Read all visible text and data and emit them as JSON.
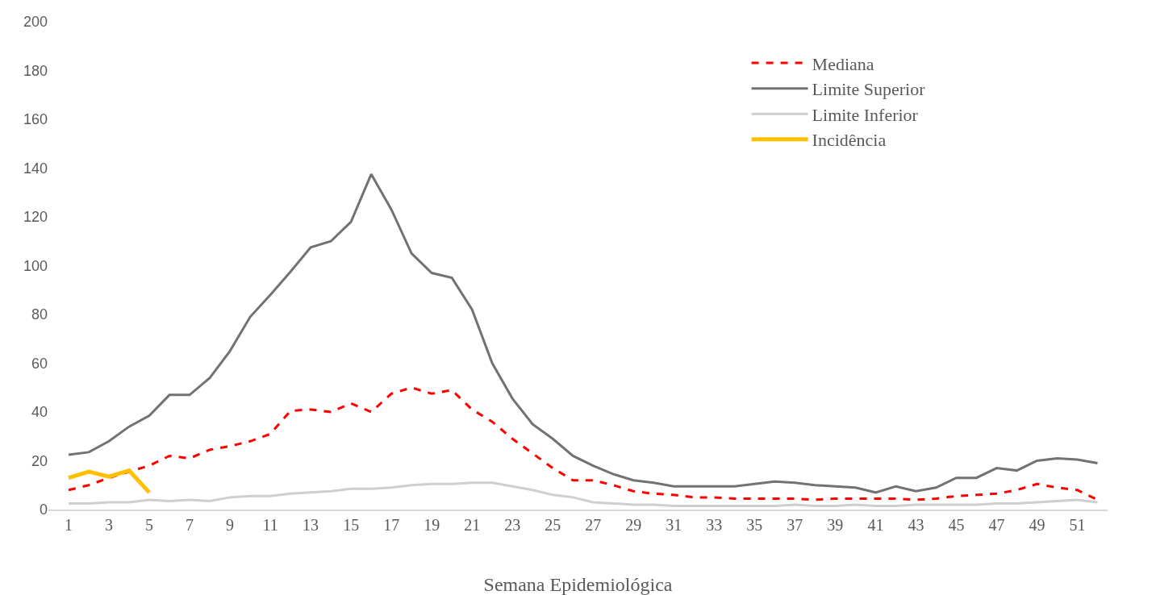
{
  "chart_data": {
    "type": "line",
    "xlabel": "Semana Epidemiológica",
    "x": [
      1,
      2,
      3,
      4,
      5,
      6,
      7,
      8,
      9,
      10,
      11,
      12,
      13,
      14,
      15,
      16,
      17,
      18,
      19,
      20,
      21,
      22,
      23,
      24,
      25,
      26,
      27,
      28,
      29,
      30,
      31,
      32,
      33,
      34,
      35,
      36,
      37,
      38,
      39,
      40,
      41,
      42,
      43,
      44,
      45,
      46,
      47,
      48,
      49,
      50,
      51,
      52
    ],
    "xlim": [
      0,
      52.5
    ],
    "xticks": [
      1,
      3,
      5,
      7,
      9,
      11,
      13,
      15,
      17,
      19,
      21,
      23,
      25,
      27,
      29,
      31,
      33,
      35,
      37,
      39,
      41,
      43,
      45,
      47,
      49,
      51
    ],
    "ylim": [
      0,
      200
    ],
    "yticks": [
      0,
      20,
      40,
      60,
      80,
      100,
      120,
      140,
      160,
      180,
      200
    ],
    "grid": false,
    "legend": "top right",
    "series": [
      {
        "name": "Mediana",
        "color": "#ff0000",
        "line_style": "dashed",
        "values": [
          8,
          10,
          13,
          15.5,
          18,
          22,
          21,
          24.5,
          26,
          28,
          31,
          40.5,
          41,
          40,
          43.5,
          40,
          47.5,
          50,
          47.5,
          49,
          41,
          36,
          29,
          23,
          17,
          12,
          12,
          10,
          7.5,
          6.5,
          6,
          5,
          5,
          4.5,
          4.5,
          4.5,
          4.5,
          4,
          4.5,
          4.5,
          4.5,
          4.5,
          4,
          4.5,
          5.5,
          6,
          6.5,
          8,
          10.5,
          9,
          8,
          4
        ]
      },
      {
        "name": "Limite Superior",
        "color": "#767171",
        "line_style": "solid",
        "values": [
          22.5,
          23.5,
          28,
          34,
          38.5,
          47,
          47,
          54,
          65,
          79,
          88,
          97.5,
          107.5,
          110,
          118,
          137.5,
          123,
          105,
          97,
          95,
          82,
          60,
          45.5,
          35,
          29,
          22,
          18,
          14.5,
          12,
          11,
          9.5,
          9.5,
          9.5,
          9.5,
          10.5,
          11.5,
          11,
          10,
          9.5,
          9,
          7,
          9.5,
          7.5,
          9,
          13,
          13,
          17,
          16,
          20,
          21,
          20.5,
          19
        ]
      },
      {
        "name": "Limite Inferior",
        "color": "#d0cece",
        "line_style": "solid",
        "values": [
          2.5,
          2.5,
          3,
          3,
          4,
          3.5,
          4,
          3.5,
          5,
          5.5,
          5.5,
          6.5,
          7,
          7.5,
          8.5,
          8.5,
          9,
          10,
          10.5,
          10.5,
          11,
          11,
          9.5,
          8,
          6,
          5,
          3,
          2.5,
          2,
          2,
          1.5,
          1.5,
          1.5,
          1.5,
          1.5,
          1.5,
          2,
          1.5,
          1.5,
          2,
          1.5,
          1.5,
          2,
          2,
          2,
          2,
          2.5,
          2.5,
          3,
          3.5,
          4,
          3
        ]
      },
      {
        "name": "Incidência",
        "color": "#ffc000",
        "line_style": "solid",
        "x": [
          1,
          2,
          3,
          4,
          5
        ],
        "values": [
          13,
          15.5,
          13.5,
          16,
          7
        ]
      }
    ]
  }
}
